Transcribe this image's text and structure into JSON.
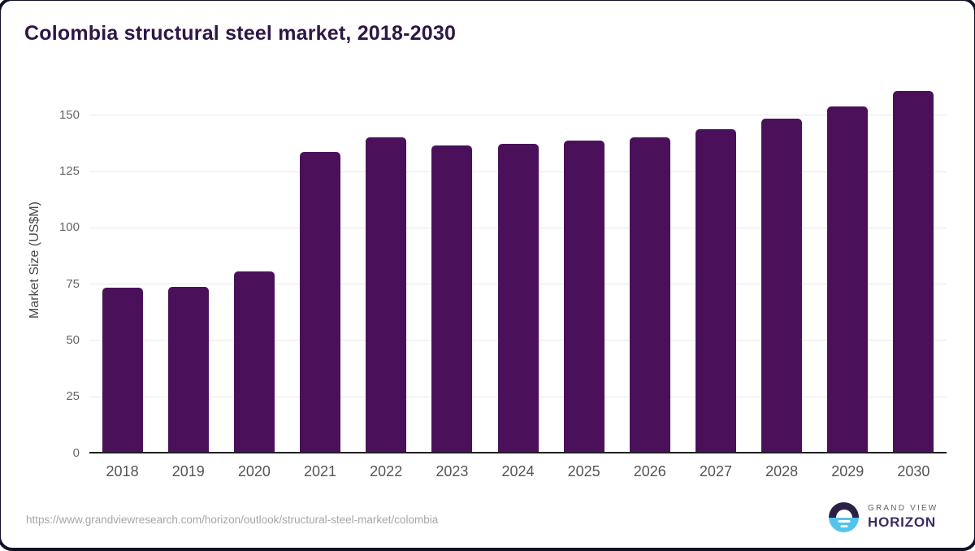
{
  "header": {
    "title": "Colombia structural steel market, 2018-2030"
  },
  "chart_data": {
    "type": "bar",
    "title": "Colombia structural steel market, 2018-2030",
    "xlabel": "",
    "ylabel": "Market Size (US$M)",
    "categories": [
      "2018",
      "2019",
      "2020",
      "2021",
      "2022",
      "2023",
      "2024",
      "2025",
      "2026",
      "2027",
      "2028",
      "2029",
      "2030"
    ],
    "values": [
      73.3,
      73.7,
      80.6,
      133.4,
      139.9,
      136.2,
      137.0,
      138.4,
      139.8,
      143.6,
      148.4,
      153.5,
      160.5
    ],
    "ylim": [
      0,
      165
    ],
    "yticks": [
      0,
      25,
      50,
      75,
      100,
      125,
      150
    ],
    "grid": "horizontal",
    "legend": "none",
    "bar_color": "#4a115a"
  },
  "colors": {
    "title": "#2d1745",
    "bar": "#4a115a",
    "axis": "#202020",
    "gridline": "#e8e8e8",
    "tick_label": "#666666",
    "logo_dark": "#2b2144",
    "logo_blue": "#54c4ec"
  },
  "footer": {
    "source_url": "https://www.grandviewresearch.com/horizon/outlook/structural-steel-market/colombia",
    "logo": {
      "brand_top": "GRAND VIEW",
      "brand_bottom": "HORIZON"
    }
  }
}
